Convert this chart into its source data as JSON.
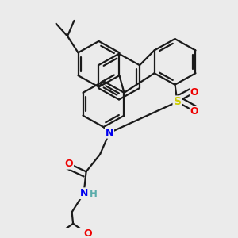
{
  "bg_color": "#ebebeb",
  "bond_color": "#1a1a1a",
  "bond_width": 1.6,
  "dbo": 0.013,
  "atom_colors": {
    "N": "#0000ee",
    "O": "#ee0000",
    "S": "#cccc00",
    "H": "#5aacaa"
  },
  "fs": 9.0,
  "figsize": [
    3.0,
    3.0
  ],
  "dpi": 100
}
